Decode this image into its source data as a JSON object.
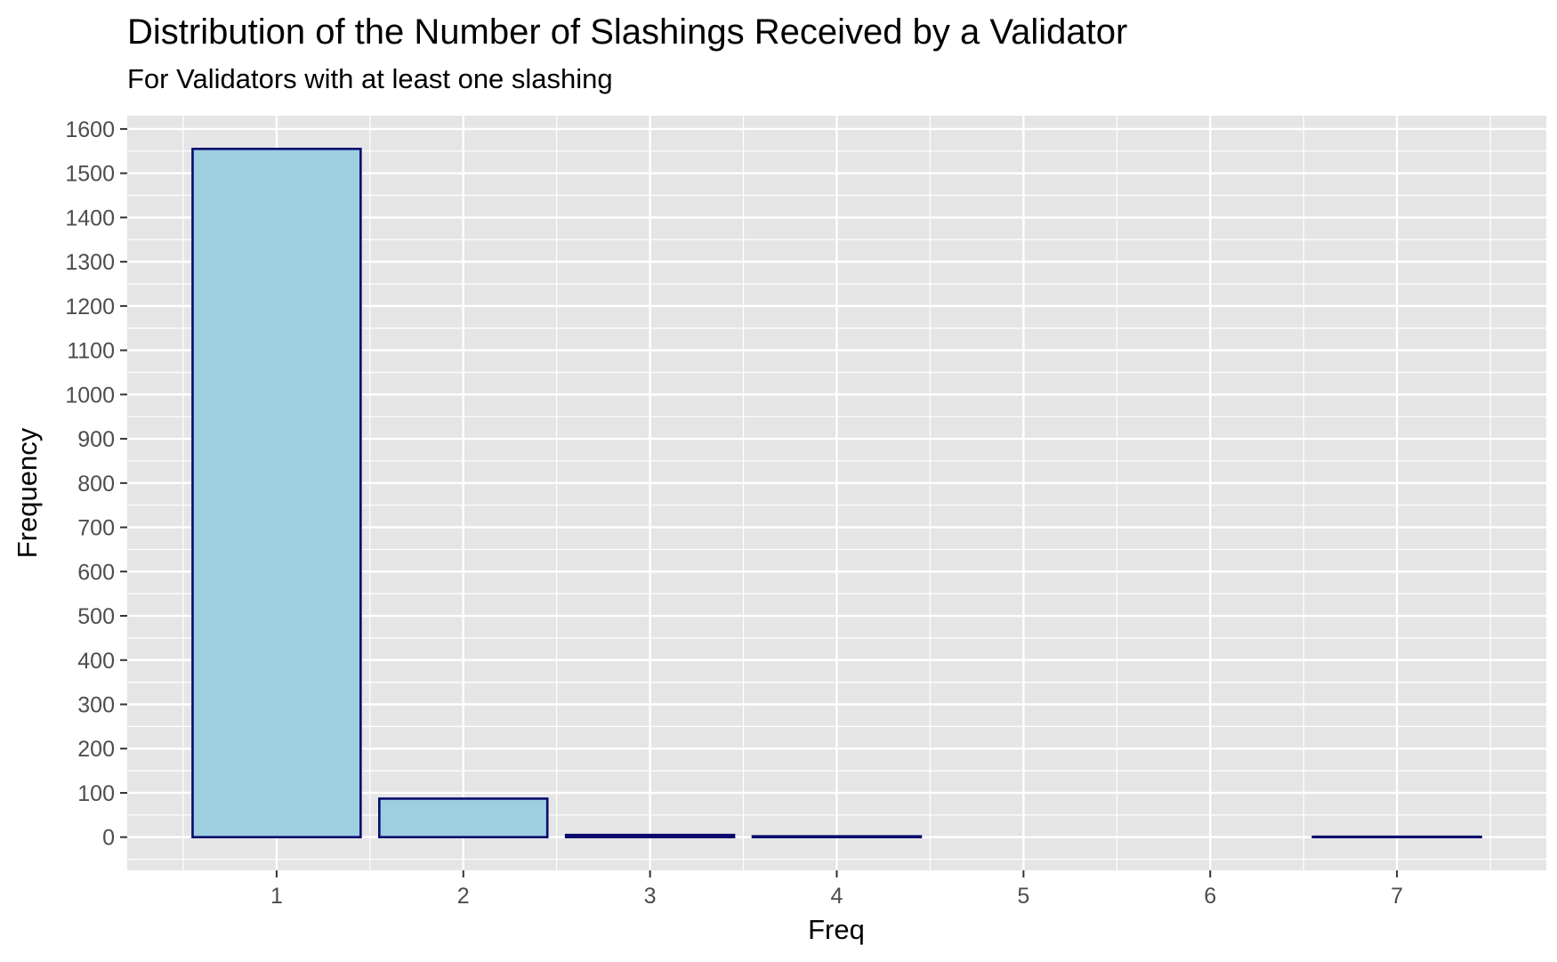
{
  "chart_data": {
    "type": "bar",
    "title": "Distribution of the Number of Slashings Received by a Validator",
    "subtitle": "For Validators with at least one slashing",
    "xlabel": "Freq",
    "ylabel": "Frequency",
    "categories": [
      "1",
      "2",
      "3",
      "4",
      "5",
      "6",
      "7"
    ],
    "values": [
      1555,
      87,
      5,
      2,
      0,
      0,
      1
    ],
    "ylim": [
      -75,
      1630
    ],
    "yticks": [
      0,
      100,
      200,
      300,
      400,
      500,
      600,
      700,
      800,
      900,
      1000,
      1100,
      1200,
      1300,
      1400,
      1500,
      1600
    ],
    "grid": true,
    "legend": "none",
    "colors": {
      "fill": "#9ecfe0",
      "stroke": "#0a0a6e",
      "panel": "#e5e5e5",
      "grid": "#ffffff"
    }
  }
}
